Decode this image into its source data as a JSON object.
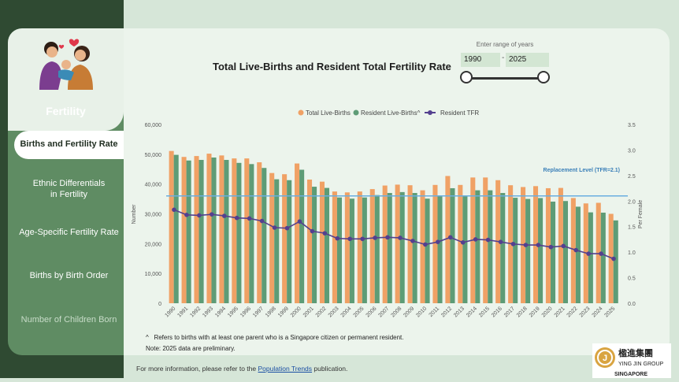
{
  "sidebar": {
    "title": "Fertility",
    "items": [
      {
        "label": "Births and Fertility Rate",
        "active": true
      },
      {
        "label": "Ethnic Differentials in Fertility"
      },
      {
        "label": "Age-Specific Fertility Rate"
      },
      {
        "label": "Births by Birth Order"
      },
      {
        "label": "Number of Children Born"
      }
    ]
  },
  "header": {
    "title": "Total Live-Births and Resident Total Fertility Rate",
    "range_label": "Enter range of years",
    "start_year": "1990",
    "end_year": "2025",
    "dash": "-"
  },
  "notes": {
    "caret": "^",
    "note1": "Refers to births with at least one parent who is a Singapore citizen or permanent resident.",
    "note2": "Note: 2025 data are preliminary."
  },
  "footer": {
    "prefix": "For more information, please refer to the ",
    "link": "Population Trends",
    "suffix": " publication."
  },
  "brand": {
    "chinese": "楹進集團",
    "name": "YING JIN GROUP",
    "country": "SINGAPORE"
  },
  "colors": {
    "total_births": "#f0a165",
    "resident_births": "#5e9c76",
    "tfr": "#54408f",
    "replacement": "#6aaee0"
  },
  "chart_data": {
    "type": "bar",
    "categories": [
      "1990",
      "1991",
      "1992",
      "1993",
      "1994",
      "1995",
      "1996",
      "1997",
      "1998",
      "1999",
      "2000",
      "2001",
      "2002",
      "2003",
      "2004",
      "2005",
      "2006",
      "2007",
      "2008",
      "2009",
      "2010",
      "2011",
      "2012",
      "2013",
      "2014",
      "2015",
      "2016",
      "2017",
      "2018",
      "2019",
      "2020",
      "2021",
      "2022",
      "2023",
      "2024",
      "2025"
    ],
    "series": [
      {
        "name": "Total Live-Births",
        "values": [
          51100,
          49100,
          49400,
          50200,
          49600,
          48600,
          48600,
          47300,
          43700,
          43300,
          46900,
          41500,
          40800,
          37500,
          37200,
          37500,
          38300,
          39500,
          39800,
          39600,
          37900,
          39700,
          42700,
          39700,
          42200,
          42200,
          41300,
          39600,
          39000,
          39300,
          38600,
          38700,
          35300,
          33500,
          33700,
          30000
        ]
      },
      {
        "name": "Resident Live-Births^",
        "values": [
          49800,
          47900,
          48100,
          48900,
          48100,
          47100,
          46700,
          45400,
          41600,
          41300,
          44800,
          39100,
          38700,
          35500,
          35100,
          35500,
          36300,
          37000,
          37300,
          37000,
          35100,
          36200,
          38600,
          35900,
          37900,
          37900,
          37000,
          35400,
          35000,
          35300,
          34100,
          34300,
          32400,
          30500,
          30400,
          27800
        ]
      },
      {
        "name": "Resident TFR",
        "values": [
          1.83,
          1.73,
          1.72,
          1.74,
          1.71,
          1.67,
          1.66,
          1.61,
          1.48,
          1.47,
          1.6,
          1.41,
          1.37,
          1.27,
          1.26,
          1.26,
          1.28,
          1.29,
          1.28,
          1.22,
          1.15,
          1.2,
          1.29,
          1.19,
          1.25,
          1.24,
          1.2,
          1.16,
          1.14,
          1.14,
          1.1,
          1.12,
          1.04,
          0.97,
          0.97,
          0.87
        ]
      }
    ],
    "replacement_label": "Replacement Level (TFR=2.1)",
    "replacement_value": 2.1,
    "ylabel": "Number",
    "y2label": "Per Female",
    "yticks": [
      "0",
      "10,000",
      "20,000",
      "30,000",
      "40,000",
      "50,000",
      "60,000"
    ],
    "y2ticks": [
      "0.0",
      "0.5",
      "1.0",
      "1.5",
      "2.0",
      "2.5",
      "3.0",
      "3.5"
    ],
    "ylim": [
      0,
      60000
    ],
    "y2lim": [
      0,
      3.5
    ],
    "legend_position": "top-center",
    "grid": false
  }
}
